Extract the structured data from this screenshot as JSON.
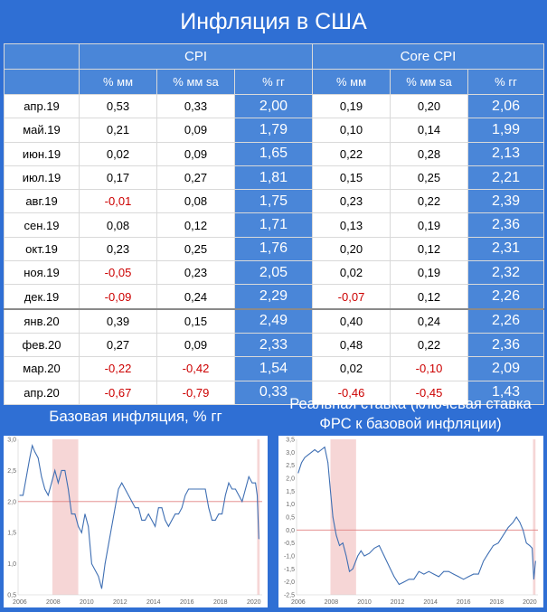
{
  "title": "Инфляция в США",
  "table": {
    "group_cpi": "CPI",
    "group_core": "Core CPI",
    "headers": [
      "% мм",
      "% мм sa",
      "% гг",
      "% мм",
      "% мм sa",
      "% гг"
    ],
    "rows": [
      {
        "date": "апр.19",
        "cpi_mm": "0,53",
        "cpi_mm_sa": "0,33",
        "cpi_yy": "2,00",
        "core_mm": "0,19",
        "core_mm_sa": "0,20",
        "core_yy": "2,06"
      },
      {
        "date": "май.19",
        "cpi_mm": "0,21",
        "cpi_mm_sa": "0,09",
        "cpi_yy": "1,79",
        "core_mm": "0,10",
        "core_mm_sa": "0,14",
        "core_yy": "1,99"
      },
      {
        "date": "июн.19",
        "cpi_mm": "0,02",
        "cpi_mm_sa": "0,09",
        "cpi_yy": "1,65",
        "core_mm": "0,22",
        "core_mm_sa": "0,28",
        "core_yy": "2,13"
      },
      {
        "date": "июл.19",
        "cpi_mm": "0,17",
        "cpi_mm_sa": "0,27",
        "cpi_yy": "1,81",
        "core_mm": "0,15",
        "core_mm_sa": "0,25",
        "core_yy": "2,21"
      },
      {
        "date": "авг.19",
        "cpi_mm": "-0,01",
        "cpi_mm_sa": "0,08",
        "cpi_yy": "1,75",
        "core_mm": "0,23",
        "core_mm_sa": "0,22",
        "core_yy": "2,39"
      },
      {
        "date": "сен.19",
        "cpi_mm": "0,08",
        "cpi_mm_sa": "0,12",
        "cpi_yy": "1,71",
        "core_mm": "0,13",
        "core_mm_sa": "0,19",
        "core_yy": "2,36"
      },
      {
        "date": "окт.19",
        "cpi_mm": "0,23",
        "cpi_mm_sa": "0,25",
        "cpi_yy": "1,76",
        "core_mm": "0,20",
        "core_mm_sa": "0,12",
        "core_yy": "2,31"
      },
      {
        "date": "ноя.19",
        "cpi_mm": "-0,05",
        "cpi_mm_sa": "0,23",
        "cpi_yy": "2,05",
        "core_mm": "0,02",
        "core_mm_sa": "0,19",
        "core_yy": "2,32"
      },
      {
        "date": "дек.19",
        "cpi_mm": "-0,09",
        "cpi_mm_sa": "0,24",
        "cpi_yy": "2,29",
        "core_mm": "-0,07",
        "core_mm_sa": "0,12",
        "core_yy": "2,26"
      },
      {
        "date": "янв.20",
        "cpi_mm": "0,39",
        "cpi_mm_sa": "0,15",
        "cpi_yy": "2,49",
        "core_mm": "0,40",
        "core_mm_sa": "0,24",
        "core_yy": "2,26"
      },
      {
        "date": "фев.20",
        "cpi_mm": "0,27",
        "cpi_mm_sa": "0,09",
        "cpi_yy": "2,33",
        "core_mm": "0,48",
        "core_mm_sa": "0,22",
        "core_yy": "2,36"
      },
      {
        "date": "мар.20",
        "cpi_mm": "-0,22",
        "cpi_mm_sa": "-0,42",
        "cpi_yy": "1,54",
        "core_mm": "0,02",
        "core_mm_sa": "-0,10",
        "core_yy": "2,09"
      },
      {
        "date": "апр.20",
        "cpi_mm": "-0,67",
        "cpi_mm_sa": "-0,79",
        "cpi_yy": "0,33",
        "core_mm": "-0,46",
        "core_mm_sa": "-0,45",
        "core_yy": "1,43"
      }
    ]
  },
  "colors": {
    "background": "#2f6fd4",
    "header": "#4a86d8",
    "negative": "#cc0000",
    "line": "#3f6fb3",
    "reference": "#e08080",
    "shade": "#f6d6d6"
  },
  "chart_data": [
    {
      "type": "line",
      "title": "Базовая инфляция, % гг",
      "ylim": [
        0.5,
        3.0
      ],
      "yticks": [
        "0,5",
        "1,0",
        "1,5",
        "2,0",
        "2,5",
        "3,0"
      ],
      "xticks": [
        "2006",
        "2008",
        "2010",
        "2012",
        "2014",
        "2016",
        "2018",
        "2020"
      ],
      "xlim": [
        2005.9,
        2020.5
      ],
      "reference_line": 2.0,
      "shaded_periods": [
        [
          2007.95,
          2009.5
        ],
        [
          2020.2,
          2020.35
        ]
      ],
      "series": [
        {
          "points": [
            [
              2006.0,
              2.1
            ],
            [
              2006.2,
              2.1
            ],
            [
              2006.4,
              2.4
            ],
            [
              2006.6,
              2.7
            ],
            [
              2006.75,
              2.9
            ],
            [
              2006.9,
              2.8
            ],
            [
              2007.1,
              2.7
            ],
            [
              2007.3,
              2.4
            ],
            [
              2007.5,
              2.2
            ],
            [
              2007.7,
              2.1
            ],
            [
              2007.9,
              2.3
            ],
            [
              2008.1,
              2.5
            ],
            [
              2008.3,
              2.3
            ],
            [
              2008.5,
              2.5
            ],
            [
              2008.7,
              2.5
            ],
            [
              2008.9,
              2.2
            ],
            [
              2009.1,
              1.8
            ],
            [
              2009.3,
              1.8
            ],
            [
              2009.5,
              1.6
            ],
            [
              2009.7,
              1.5
            ],
            [
              2009.9,
              1.8
            ],
            [
              2010.1,
              1.6
            ],
            [
              2010.3,
              1.0
            ],
            [
              2010.5,
              0.9
            ],
            [
              2010.7,
              0.8
            ],
            [
              2010.9,
              0.6
            ],
            [
              2011.1,
              1.0
            ],
            [
              2011.3,
              1.3
            ],
            [
              2011.5,
              1.6
            ],
            [
              2011.7,
              1.9
            ],
            [
              2011.9,
              2.2
            ],
            [
              2012.1,
              2.3
            ],
            [
              2012.3,
              2.2
            ],
            [
              2012.5,
              2.1
            ],
            [
              2012.7,
              2.0
            ],
            [
              2012.9,
              1.9
            ],
            [
              2013.1,
              1.9
            ],
            [
              2013.3,
              1.7
            ],
            [
              2013.5,
              1.7
            ],
            [
              2013.7,
              1.8
            ],
            [
              2013.9,
              1.7
            ],
            [
              2014.1,
              1.6
            ],
            [
              2014.3,
              1.9
            ],
            [
              2014.5,
              1.9
            ],
            [
              2014.7,
              1.7
            ],
            [
              2014.9,
              1.6
            ],
            [
              2015.1,
              1.7
            ],
            [
              2015.3,
              1.8
            ],
            [
              2015.5,
              1.8
            ],
            [
              2015.7,
              1.9
            ],
            [
              2015.9,
              2.1
            ],
            [
              2016.1,
              2.2
            ],
            [
              2016.3,
              2.2
            ],
            [
              2016.5,
              2.2
            ],
            [
              2016.7,
              2.2
            ],
            [
              2016.9,
              2.2
            ],
            [
              2017.1,
              2.2
            ],
            [
              2017.3,
              1.9
            ],
            [
              2017.5,
              1.7
            ],
            [
              2017.7,
              1.7
            ],
            [
              2017.9,
              1.8
            ],
            [
              2018.1,
              1.8
            ],
            [
              2018.3,
              2.1
            ],
            [
              2018.5,
              2.3
            ],
            [
              2018.7,
              2.2
            ],
            [
              2018.9,
              2.2
            ],
            [
              2019.1,
              2.1
            ],
            [
              2019.3,
              2.0
            ],
            [
              2019.5,
              2.2
            ],
            [
              2019.7,
              2.4
            ],
            [
              2019.9,
              2.3
            ],
            [
              2020.1,
              2.3
            ],
            [
              2020.2,
              2.1
            ],
            [
              2020.3,
              1.4
            ]
          ]
        }
      ]
    },
    {
      "type": "line",
      "title": "Реальная ставка (ключевая ставка ФРС к базовой инфляции)",
      "ylim": [
        -2.5,
        3.5
      ],
      "yticks": [
        "3,5",
        "3,0",
        "2,5",
        "2,0",
        "1,5",
        "1,0",
        "0,5",
        "0,0",
        "-0,5",
        "-1,0",
        "-1,5",
        "-2,0",
        "-2,5"
      ],
      "xticks": [
        "2006",
        "2008",
        "2010",
        "2012",
        "2014",
        "2016",
        "2018",
        "2020"
      ],
      "xlim": [
        2005.9,
        2020.5
      ],
      "reference_line": 0.0,
      "shaded_periods": [
        [
          2007.95,
          2009.5
        ],
        [
          2020.2,
          2020.35
        ]
      ],
      "series": [
        {
          "points": [
            [
              2006.0,
              2.2
            ],
            [
              2006.2,
              2.6
            ],
            [
              2006.4,
              2.8
            ],
            [
              2006.6,
              2.9
            ],
            [
              2006.8,
              3.0
            ],
            [
              2007.0,
              3.1
            ],
            [
              2007.2,
              3.0
            ],
            [
              2007.4,
              3.1
            ],
            [
              2007.6,
              3.2
            ],
            [
              2007.8,
              2.6
            ],
            [
              2007.95,
              1.5
            ],
            [
              2008.1,
              0.5
            ],
            [
              2008.3,
              -0.2
            ],
            [
              2008.5,
              -0.6
            ],
            [
              2008.7,
              -0.5
            ],
            [
              2008.9,
              -1.0
            ],
            [
              2009.1,
              -1.6
            ],
            [
              2009.3,
              -1.5
            ],
            [
              2009.6,
              -1.0
            ],
            [
              2009.8,
              -0.8
            ],
            [
              2010.0,
              -1.0
            ],
            [
              2010.3,
              -0.9
            ],
            [
              2010.6,
              -0.7
            ],
            [
              2010.9,
              -0.6
            ],
            [
              2011.2,
              -1.0
            ],
            [
              2011.5,
              -1.4
            ],
            [
              2011.8,
              -1.8
            ],
            [
              2012.1,
              -2.1
            ],
            [
              2012.4,
              -2.0
            ],
            [
              2012.7,
              -1.9
            ],
            [
              2013.0,
              -1.9
            ],
            [
              2013.3,
              -1.6
            ],
            [
              2013.6,
              -1.7
            ],
            [
              2013.9,
              -1.6
            ],
            [
              2014.2,
              -1.7
            ],
            [
              2014.5,
              -1.8
            ],
            [
              2014.8,
              -1.6
            ],
            [
              2015.1,
              -1.6
            ],
            [
              2015.4,
              -1.7
            ],
            [
              2015.7,
              -1.8
            ],
            [
              2016.0,
              -1.9
            ],
            [
              2016.3,
              -1.8
            ],
            [
              2016.6,
              -1.7
            ],
            [
              2016.9,
              -1.7
            ],
            [
              2017.2,
              -1.2
            ],
            [
              2017.5,
              -0.9
            ],
            [
              2017.8,
              -0.6
            ],
            [
              2018.1,
              -0.5
            ],
            [
              2018.4,
              -0.2
            ],
            [
              2018.7,
              0.1
            ],
            [
              2019.0,
              0.3
            ],
            [
              2019.2,
              0.5
            ],
            [
              2019.4,
              0.3
            ],
            [
              2019.6,
              0.0
            ],
            [
              2019.8,
              -0.5
            ],
            [
              2020.0,
              -0.6
            ],
            [
              2020.15,
              -0.7
            ],
            [
              2020.25,
              -1.9
            ],
            [
              2020.35,
              -1.2
            ]
          ]
        }
      ]
    }
  ]
}
